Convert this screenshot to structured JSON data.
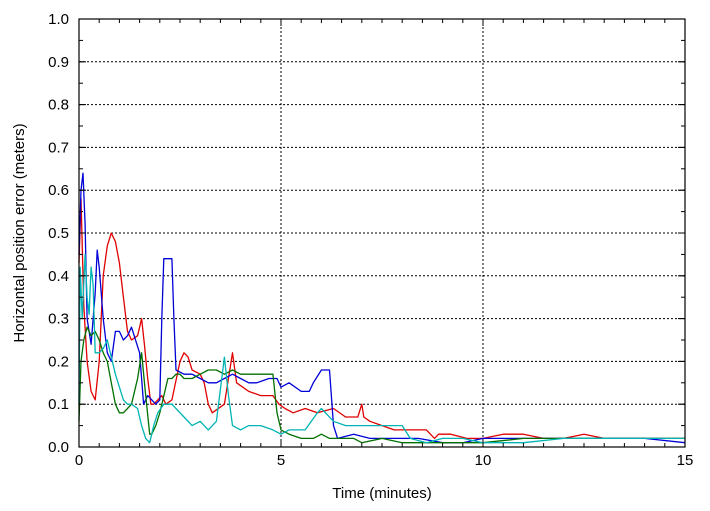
{
  "chart_data": {
    "type": "line",
    "xlabel": "Time (minutes)",
    "ylabel": "Horizontal position error (meters)",
    "xlim": [
      0,
      15
    ],
    "ylim": [
      0,
      1.0
    ],
    "x_ticks": [
      0,
      5,
      10,
      15
    ],
    "x_tick_labels": [
      "0",
      "5",
      "10",
      "15"
    ],
    "y_ticks": [
      0,
      0.1,
      0.2,
      0.3,
      0.4,
      0.5,
      0.6,
      0.7,
      0.8,
      0.9,
      1.0
    ],
    "y_tick_labels": [
      "0.0",
      "0.1",
      "0.2",
      "0.3",
      "0.4",
      "0.5",
      "0.6",
      "0.7",
      "0.8",
      "0.9",
      "1.0"
    ],
    "x_grid": [
      5,
      10
    ],
    "y_grid": [
      0.1,
      0.2,
      0.3,
      0.4,
      0.5,
      0.6,
      0.7,
      0.8,
      0.9
    ],
    "legend": "none",
    "series": [
      {
        "color": "#e00000",
        "x": [
          0,
          0.05,
          0.12,
          0.2,
          0.3,
          0.4,
          0.5,
          0.6,
          0.7,
          0.8,
          0.9,
          1.0,
          1.1,
          1.2,
          1.3,
          1.45,
          1.55,
          1.62,
          1.7,
          1.78,
          1.85,
          1.95,
          2.05,
          2.15,
          2.3,
          2.5,
          2.6,
          2.7,
          2.8,
          3.0,
          3.1,
          3.2,
          3.3,
          3.6,
          3.8,
          3.9,
          4.2,
          4.5,
          4.8,
          4.95,
          5.1,
          5.3,
          5.6,
          5.9,
          6.3,
          6.6,
          6.9,
          7.0,
          7.05,
          7.2,
          7.5,
          7.8,
          8.2,
          8.6,
          8.8,
          8.9,
          9.2,
          9.6,
          10.0,
          10.5,
          11.0,
          11.5,
          12.0,
          12.5,
          13.0,
          13.5,
          14.0,
          14.5,
          15.0
        ],
        "y": [
          0.43,
          0.58,
          0.33,
          0.2,
          0.13,
          0.11,
          0.2,
          0.4,
          0.47,
          0.5,
          0.48,
          0.43,
          0.35,
          0.27,
          0.25,
          0.26,
          0.3,
          0.24,
          0.16,
          0.1,
          0.1,
          0.11,
          0.12,
          0.1,
          0.11,
          0.2,
          0.22,
          0.21,
          0.18,
          0.17,
          0.15,
          0.1,
          0.08,
          0.1,
          0.22,
          0.15,
          0.13,
          0.12,
          0.12,
          0.1,
          0.09,
          0.08,
          0.09,
          0.08,
          0.09,
          0.07,
          0.07,
          0.1,
          0.07,
          0.06,
          0.05,
          0.04,
          0.04,
          0.04,
          0.02,
          0.03,
          0.03,
          0.02,
          0.02,
          0.03,
          0.03,
          0.02,
          0.02,
          0.03,
          0.02,
          0.02,
          0.02,
          0.02,
          0.02
        ]
      },
      {
        "color": "#0000d8",
        "x": [
          0,
          0.05,
          0.1,
          0.15,
          0.2,
          0.3,
          0.4,
          0.45,
          0.5,
          0.6,
          0.7,
          0.8,
          0.9,
          1.0,
          1.1,
          1.2,
          1.3,
          1.5,
          1.6,
          1.7,
          1.9,
          2.0,
          2.05,
          2.1,
          2.2,
          2.3,
          2.35,
          2.4,
          2.6,
          2.8,
          3.0,
          3.2,
          3.4,
          3.6,
          3.8,
          4.0,
          4.2,
          4.4,
          4.7,
          4.9,
          5.0,
          5.2,
          5.5,
          5.7,
          5.8,
          6.0,
          6.2,
          6.3,
          6.4,
          6.8,
          7.2,
          7.6,
          8.0,
          8.4,
          9.0,
          9.5,
          10.0,
          11.0,
          12.0,
          13.0,
          14.0,
          15.0
        ],
        "y": [
          0.45,
          0.6,
          0.64,
          0.52,
          0.3,
          0.24,
          0.36,
          0.46,
          0.42,
          0.3,
          0.22,
          0.2,
          0.27,
          0.27,
          0.25,
          0.26,
          0.28,
          0.22,
          0.1,
          0.12,
          0.1,
          0.11,
          0.3,
          0.44,
          0.44,
          0.44,
          0.3,
          0.18,
          0.17,
          0.17,
          0.16,
          0.15,
          0.15,
          0.16,
          0.17,
          0.16,
          0.15,
          0.15,
          0.16,
          0.16,
          0.14,
          0.15,
          0.13,
          0.13,
          0.15,
          0.18,
          0.18,
          0.05,
          0.02,
          0.03,
          0.02,
          0.02,
          0.02,
          0.02,
          0.01,
          0.01,
          0.02,
          0.02,
          0.02,
          0.02,
          0.02,
          0.01
        ]
      },
      {
        "color": "#007000",
        "x": [
          0,
          0.05,
          0.12,
          0.2,
          0.3,
          0.4,
          0.5,
          0.6,
          0.7,
          0.8,
          0.9,
          1.0,
          1.1,
          1.2,
          1.3,
          1.45,
          1.55,
          1.65,
          1.75,
          1.8,
          1.9,
          2.0,
          2.2,
          2.3,
          2.4,
          2.5,
          2.6,
          2.8,
          3.0,
          3.2,
          3.4,
          3.6,
          3.8,
          4.0,
          4.2,
          4.5,
          4.8,
          4.9,
          5.0,
          5.2,
          5.5,
          5.8,
          6.0,
          6.2,
          6.4,
          6.6,
          6.8,
          7.0,
          7.5,
          8.0,
          8.5,
          9.0,
          9.5,
          10.0,
          11.0,
          12.0,
          13.0,
          14.0,
          15.0
        ],
        "y": [
          0.06,
          0.2,
          0.25,
          0.28,
          0.26,
          0.27,
          0.25,
          0.22,
          0.2,
          0.15,
          0.1,
          0.08,
          0.08,
          0.09,
          0.1,
          0.16,
          0.22,
          0.12,
          0.03,
          0.03,
          0.05,
          0.08,
          0.16,
          0.16,
          0.17,
          0.17,
          0.16,
          0.16,
          0.17,
          0.18,
          0.18,
          0.17,
          0.18,
          0.17,
          0.17,
          0.17,
          0.17,
          0.08,
          0.04,
          0.03,
          0.02,
          0.02,
          0.03,
          0.02,
          0.02,
          0.02,
          0.02,
          0.01,
          0.02,
          0.01,
          0.01,
          0.01,
          0.01,
          0.01,
          0.02,
          0.02,
          0.02,
          0.02,
          0.02
        ]
      },
      {
        "color": "#00b4b4",
        "x": [
          0,
          0.03,
          0.08,
          0.15,
          0.2,
          0.25,
          0.3,
          0.35,
          0.4,
          0.5,
          0.6,
          0.7,
          0.8,
          0.9,
          1.0,
          1.1,
          1.2,
          1.3,
          1.45,
          1.55,
          1.65,
          1.75,
          1.85,
          1.95,
          2.1,
          2.3,
          2.6,
          2.8,
          3.0,
          3.2,
          3.4,
          3.6,
          3.7,
          3.8,
          4.0,
          4.2,
          4.5,
          4.8,
          5.0,
          5.2,
          5.6,
          5.9,
          6.0,
          6.3,
          6.6,
          6.8,
          7.2,
          7.6,
          8.0,
          8.2,
          8.6,
          9.0,
          9.5,
          10.0,
          11.0,
          12.0,
          13.0,
          14.0,
          15.0
        ],
        "y": [
          0.1,
          0.42,
          0.3,
          0.45,
          0.35,
          0.31,
          0.42,
          0.38,
          0.22,
          0.22,
          0.23,
          0.25,
          0.21,
          0.17,
          0.14,
          0.11,
          0.1,
          0.1,
          0.09,
          0.05,
          0.02,
          0.01,
          0.05,
          0.08,
          0.1,
          0.1,
          0.07,
          0.05,
          0.06,
          0.04,
          0.06,
          0.21,
          0.12,
          0.05,
          0.04,
          0.05,
          0.05,
          0.04,
          0.03,
          0.04,
          0.04,
          0.08,
          0.09,
          0.06,
          0.05,
          0.05,
          0.05,
          0.05,
          0.05,
          0.02,
          0.01,
          0.02,
          0.02,
          0.01,
          0.01,
          0.02,
          0.02,
          0.02,
          0.02
        ]
      }
    ]
  }
}
